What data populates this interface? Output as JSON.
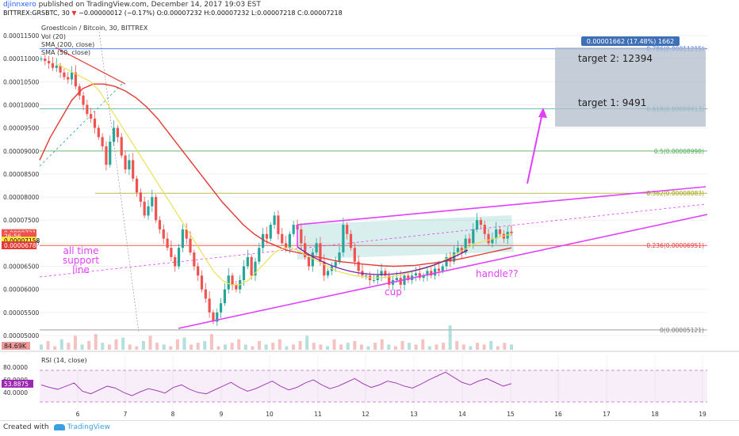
{
  "header": {
    "author": "djinnxero",
    "published": "published on TradingView.com, December 14, 2017 19:03 EST",
    "symbol": "BITTREX:GRSBTC, 30",
    "change": "−0.00000012 (−0.17%)",
    "ohlc": "O:0.00007232 H:0.00007232 L:0.00007218 C:0.00007218"
  },
  "legend": {
    "title": "Groestlcoin / Bitcoin, 30, BITTREX",
    "vol": "Vol (20)",
    "sma200": "SMA (200, close)",
    "sma50": "SMA (50, close)",
    "rsi": "RSI (14, close)"
  },
  "footer": {
    "created": "Created with",
    "brand": "TradingView"
  },
  "colors": {
    "up": "#26a69a",
    "down": "#ef5350",
    "sma200": "#e53935",
    "sma50": "#e8e04a",
    "drawing": "#e040fb",
    "fib": "#5b9bd5",
    "rsi": "#9c27b0",
    "target_box": "#b0bccb"
  },
  "chart_data": {
    "type": "candlestick",
    "xlabels": [
      "6",
      "7",
      "8",
      "9",
      "10",
      "11",
      "12",
      "13",
      "14",
      "15",
      "16",
      "17",
      "18",
      "19"
    ],
    "y_axis": {
      "ticks": [
        "0.00011500",
        "0.00011000",
        "0.00010500",
        "0.00010000",
        "0.00009500",
        "0.00009000",
        "0.00008500",
        "0.00008000",
        "0.00007500",
        "0.00007000",
        "0.00006500",
        "0.00006000",
        "0.00005500",
        "0.00005000"
      ],
      "range": [
        4.85e-05,
        1.19e-05
      ]
    },
    "price_badges": [
      {
        "label": "0.00007218",
        "value": 7.218e-05,
        "bg": "#ef5350",
        "fg": "#fff"
      },
      {
        "label": "26:56",
        "value": 7.15e-05,
        "bg": "#ef5350",
        "fg": "#fff"
      },
      {
        "label": "0.00007158",
        "value": 7.055e-05,
        "bg": "#ffeb3b",
        "fg": "#000"
      },
      {
        "label": "0.00006786",
        "value": 6.955e-05,
        "bg": "#e53935",
        "fg": "#fff"
      }
    ],
    "volume_badge": "84.69K",
    "fib_levels": [
      {
        "label": "0.786(0.00011215)",
        "value": 0.00011215,
        "color": "#2962ff"
      },
      {
        "label": "0.618(0.00009913)",
        "value": 9.913e-05,
        "color": "#26a69a"
      },
      {
        "label": "0.5(0.00008998)",
        "value": 8.998e-05,
        "color": "#4caf50"
      },
      {
        "label": "0.382(0.00008083)",
        "value": 8.083e-05,
        "color": "#9aa000"
      },
      {
        "label": "0.236(0.00006951)",
        "value": 6.951e-05,
        "color": "#e53935"
      },
      {
        "label": "0(0.00005121)",
        "value": 5.121e-05,
        "color": "#777"
      }
    ],
    "measure_label": "0.00001662 (17.48%) 1662",
    "annotations": {
      "target2": "target 2: 12394",
      "target1": "target 1: 9491",
      "support": [
        "all time",
        "support",
        "line"
      ],
      "cup": "cup",
      "handle": "handle??"
    },
    "rsi": {
      "ticks": [
        "80.0000",
        "60.0000",
        "40.0000"
      ],
      "last": "53.8875",
      "upper": 70,
      "lower": 30,
      "range": [
        100,
        0
      ]
    },
    "series_close": [
      11000,
      10950,
      10900,
      10800,
      10850,
      10700,
      10600,
      10550,
      10700,
      10400,
      10200,
      10000,
      9800,
      9700,
      9500,
      9300,
      9100,
      8700,
      9200,
      9500,
      9300,
      8900,
      8600,
      8800,
      8400,
      8100,
      7900,
      7600,
      7800,
      8000,
      7500,
      7300,
      7100,
      6900,
      6700,
      6500,
      6900,
      7300,
      7100,
      6800,
      6500,
      6300,
      6000,
      5800,
      5500,
      5300,
      5500,
      5700,
      6000,
      6300,
      6100,
      6000,
      6200,
      6500,
      6700,
      6300,
      6600,
      6900,
      7200,
      7100,
      7400,
      7600,
      7200,
      7000,
      6900,
      7200,
      7400,
      7300,
      7000,
      6700,
      6500,
      6800,
      7000,
      6600,
      6300,
      6400,
      6500,
      6600,
      6800,
      7400,
      7200,
      6900,
      6600,
      6400,
      6300,
      6300,
      6200,
      6200,
      6300,
      6400,
      6300,
      6100,
      6200,
      6250,
      6100,
      6300,
      6200,
      6300,
      6350,
      6250,
      6300,
      6400,
      6300,
      6450,
      6400,
      6500,
      6700,
      6600,
      6800,
      6900,
      6800,
      7100,
      7000,
      7300,
      7500,
      7400,
      7200,
      7000,
      7100,
      7300,
      7200,
      7100,
      7250,
      7218
    ],
    "sma50_close": [
      10900,
      10800,
      10700,
      10600,
      10500,
      10300,
      10000,
      9700,
      9400,
      9100,
      8800,
      8500,
      8200,
      7900,
      7600,
      7300,
      7000,
      6700,
      6400,
      6200,
      6100,
      6100,
      6200,
      6400,
      6600,
      6800,
      6900,
      6900,
      6800,
      6700,
      6600,
      6500,
      6400,
      6350,
      6300,
      6280,
      6250,
      6250,
      6270,
      6300,
      6350,
      6400,
      6450,
      6500,
      6600,
      6700,
      6800,
      6900,
      7000,
      7050,
      7100,
      7150,
      7200
    ],
    "sma200_close": [
      8800,
      9300,
      9700,
      10100,
      10350,
      10450,
      10450,
      10400,
      10300,
      10150,
      9950,
      9700,
      9400,
      9100,
      8800,
      8500,
      8200,
      7900,
      7650,
      7400,
      7200,
      7050,
      6950,
      6850,
      6800,
      6750,
      6700,
      6650,
      6600,
      6580,
      6550,
      6530,
      6510,
      6500,
      6510,
      6520,
      6550,
      6580,
      6620,
      6650,
      6700,
      6750,
      6800,
      6850,
      6900
    ],
    "volume_profile": [
      3,
      5,
      2,
      6,
      4,
      8,
      3,
      5,
      9,
      4,
      3,
      6,
      7,
      3,
      2,
      5,
      8,
      4,
      3,
      2,
      6,
      7,
      3,
      4,
      5,
      9,
      2,
      3,
      4,
      6,
      3,
      2,
      5,
      3,
      4,
      6,
      2,
      3,
      5,
      8,
      4,
      3,
      2,
      6,
      3,
      4,
      5,
      3,
      2,
      4,
      6,
      3,
      2,
      5,
      4,
      3,
      6,
      2,
      3,
      4,
      14,
      5,
      3,
      2,
      4,
      3,
      5,
      2,
      4,
      3
    ],
    "rsi_values": [
      52,
      48,
      45,
      50,
      55,
      42,
      38,
      44,
      50,
      47,
      40,
      35,
      41,
      46,
      43,
      39,
      48,
      52,
      45,
      40,
      38,
      44,
      50,
      56,
      48,
      42,
      46,
      52,
      58,
      50,
      44,
      48,
      55,
      60,
      52,
      46,
      50,
      56,
      62,
      54,
      48,
      52,
      58,
      55,
      50,
      47,
      53,
      60,
      66,
      72,
      64,
      56,
      52,
      58,
      62,
      56,
      50,
      54
    ]
  }
}
